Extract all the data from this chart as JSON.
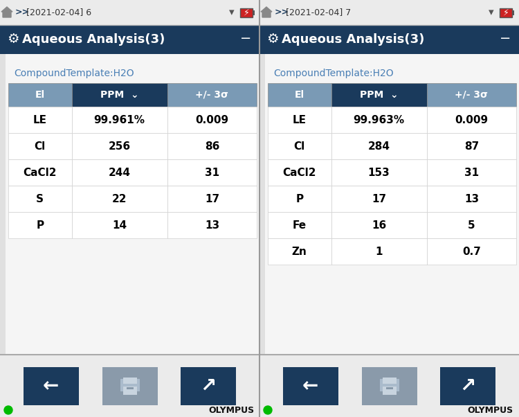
{
  "left_panel": {
    "nav_text": ">> [2021-02-04] 6",
    "title": "Aqueous Analysis(3)",
    "subtitle": "CompoundTemplate:H2O",
    "headers": [
      "El",
      "PPM  ⌄",
      "+/- 3σ"
    ],
    "rows": [
      [
        "LE",
        "99.961%",
        "0.009"
      ],
      [
        "Cl",
        "256",
        "86"
      ],
      [
        "CaCl2",
        "244",
        "31"
      ],
      [
        "S",
        "22",
        "17"
      ],
      [
        "P",
        "14",
        "13"
      ]
    ]
  },
  "right_panel": {
    "nav_text": ">> [2021-02-04] 7",
    "title": "Aqueous Analysis(3)",
    "subtitle": "CompoundTemplate:H2O",
    "headers": [
      "El",
      "PPM  ⌄",
      "+/- 3σ"
    ],
    "rows": [
      [
        "LE",
        "99.963%",
        "0.009"
      ],
      [
        "Cl",
        "284",
        "87"
      ],
      [
        "CaCl2",
        "153",
        "31"
      ],
      [
        "P",
        "17",
        "13"
      ],
      [
        "Fe",
        "16",
        "5"
      ],
      [
        "Zn",
        "1",
        "0.7"
      ]
    ]
  },
  "colors": {
    "nav_bar_bg": "#ebebeb",
    "title_bar_bg": "#1a3a5c",
    "title_text": "#ffffff",
    "table_header_el_bg": "#7a9ab5",
    "table_header_ppm_bg": "#1a3a5c",
    "table_header_sigma_bg": "#7a9ab5",
    "table_header_text": "#ffffff",
    "table_row_bg": "#ffffff",
    "table_text": "#000000",
    "subtitle_text": "#4a7fb5",
    "content_bg": "#f0f0f0",
    "button_dark_bg": "#1a3a5c",
    "button_mid_bg": "#8a9aaa",
    "button_text": "#ffffff",
    "bottom_bar_bg": "#ebebeb",
    "green_dot": "#00bb00",
    "olympus_text": "#111111",
    "row_divider": "#d0d0d0",
    "nav_text_color": "#333333",
    "panel_divider": "#aaaaaa"
  }
}
